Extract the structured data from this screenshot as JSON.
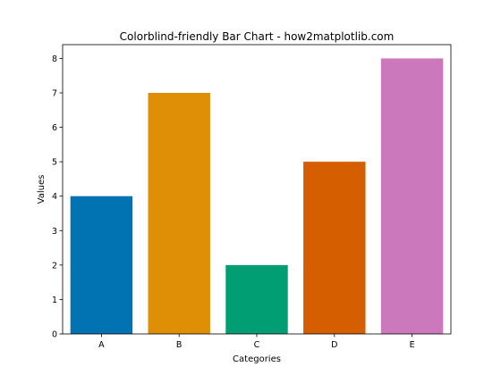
{
  "chart_data": {
    "type": "bar",
    "title": "Colorblind-friendly Bar Chart - how2matplotlib.com",
    "xlabel": "Categories",
    "ylabel": "Values",
    "categories": [
      "A",
      "B",
      "C",
      "D",
      "E"
    ],
    "values": [
      4,
      7,
      2,
      5,
      8
    ],
    "colors": [
      "#0173b2",
      "#de8f05",
      "#029e73",
      "#d55e00",
      "#cc78bc"
    ],
    "ylim": [
      0,
      8.4
    ],
    "yticks": [
      0,
      1,
      2,
      3,
      4,
      5,
      6,
      7,
      8
    ],
    "grid": false,
    "legend": false
  }
}
